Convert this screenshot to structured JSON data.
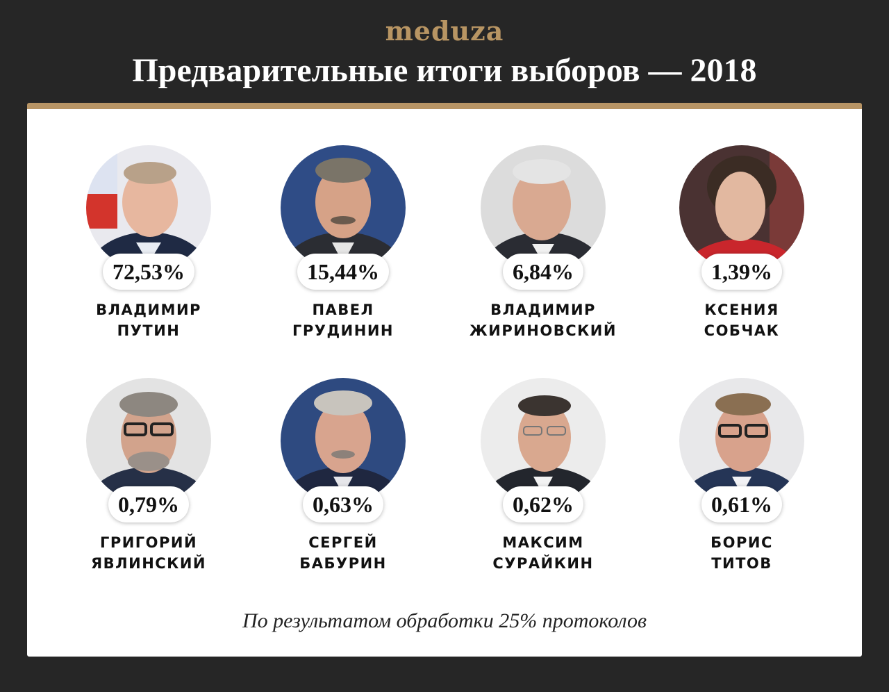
{
  "header": {
    "logo": "meduza",
    "title": "Предварительные итоги выборов — 2018"
  },
  "footnote": "По результатом обработки 25% протоколов",
  "colors": {
    "background": "#262626",
    "accent": "#b79465",
    "card": "#ffffff"
  },
  "chart_data": {
    "type": "table",
    "title": "Предварительные итоги выборов — 2018",
    "unit": "%",
    "candidates": [
      {
        "first": "ВЛАДИМИР",
        "last": "ПУТИН",
        "value": 72.53,
        "label": "72,53%"
      },
      {
        "first": "ПАВЕЛ",
        "last": "ГРУДИНИН",
        "value": 15.44,
        "label": "15,44%"
      },
      {
        "first": "ВЛАДИМИР",
        "last": "ЖИРИНОВСКИЙ",
        "value": 6.84,
        "label": "6,84%"
      },
      {
        "first": "КСЕНИЯ",
        "last": "СОБЧАК",
        "value": 1.39,
        "label": "1,39%"
      },
      {
        "first": "ГРИГОРИЙ",
        "last": "ЯВЛИНСКИЙ",
        "value": 0.79,
        "label": "0,79%"
      },
      {
        "first": "СЕРГЕЙ",
        "last": "БАБУРИН",
        "value": 0.63,
        "label": "0,63%"
      },
      {
        "first": "МАКСИМ",
        "last": "СУРАЙКИН",
        "value": 0.62,
        "label": "0,62%"
      },
      {
        "first": "БОРИС",
        "last": "ТИТОВ",
        "value": 0.61,
        "label": "0,61%"
      }
    ]
  }
}
